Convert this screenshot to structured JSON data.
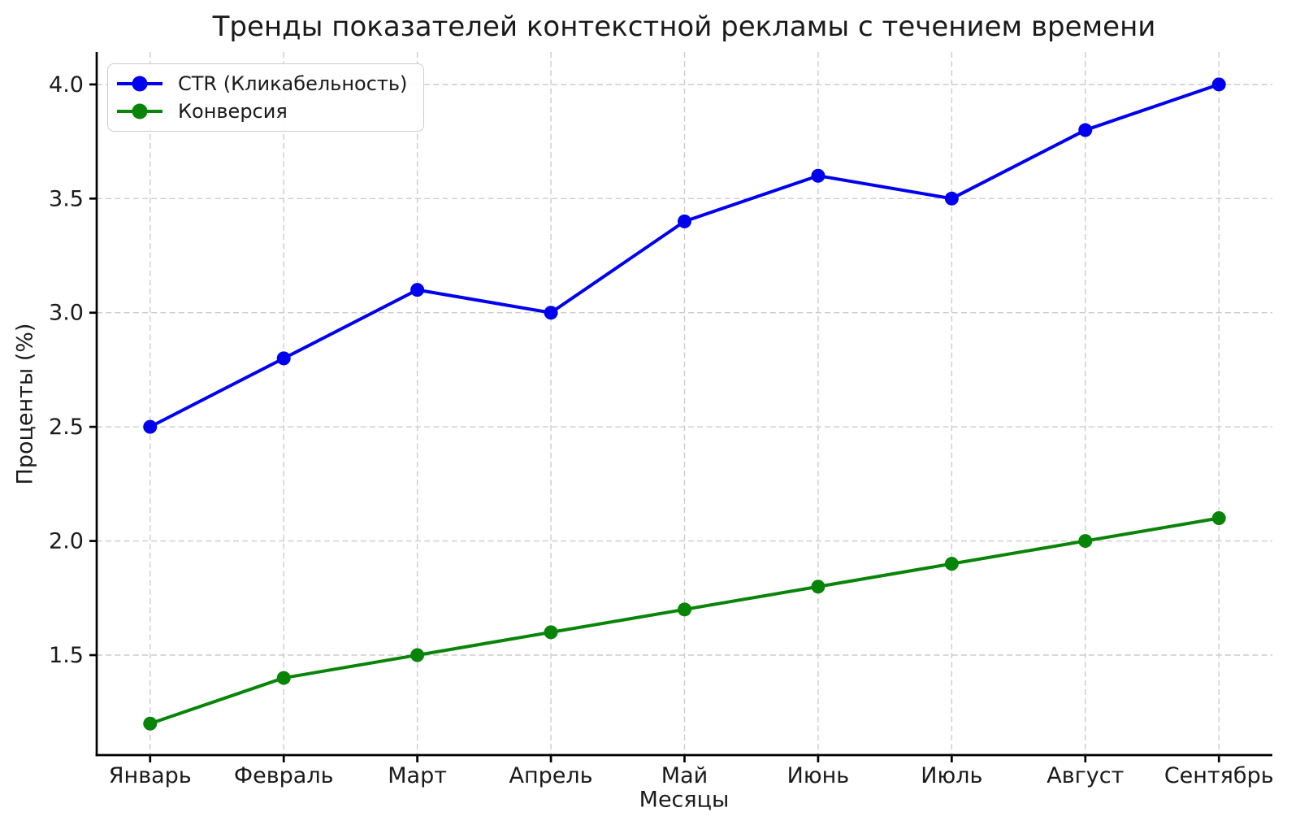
{
  "chart_data": {
    "type": "line",
    "title": "Тренды показателей контекстной рекламы с течением времени",
    "xlabel": "Месяцы",
    "ylabel": "Проценты (%)",
    "categories": [
      "Январь",
      "Февраль",
      "Март",
      "Апрель",
      "Май",
      "Июнь",
      "Июль",
      "Август",
      "Сентябрь"
    ],
    "series": [
      {
        "name": "CTR (Кликабельность)",
        "color": "#0000ee",
        "values": [
          2.5,
          2.8,
          3.1,
          3.0,
          3.4,
          3.6,
          3.5,
          3.8,
          4.0
        ]
      },
      {
        "name": "Конверсия",
        "color": "#088408",
        "values": [
          1.2,
          1.4,
          1.5,
          1.6,
          1.7,
          1.8,
          1.9,
          2.0,
          2.1
        ]
      }
    ],
    "yticks": [
      1.5,
      2.0,
      2.5,
      3.0,
      3.5,
      4.0
    ],
    "ylim": [
      1.062,
      4.142
    ],
    "x_margin_units": 0.4,
    "grid": true,
    "grid_style": "dashed",
    "legend_position": "upper-left",
    "marker": "circle"
  },
  "style_colors": {
    "grid": "#cccccc",
    "spine": "#000000",
    "tick_text": "#1a1a1a",
    "background": "#ffffff"
  }
}
